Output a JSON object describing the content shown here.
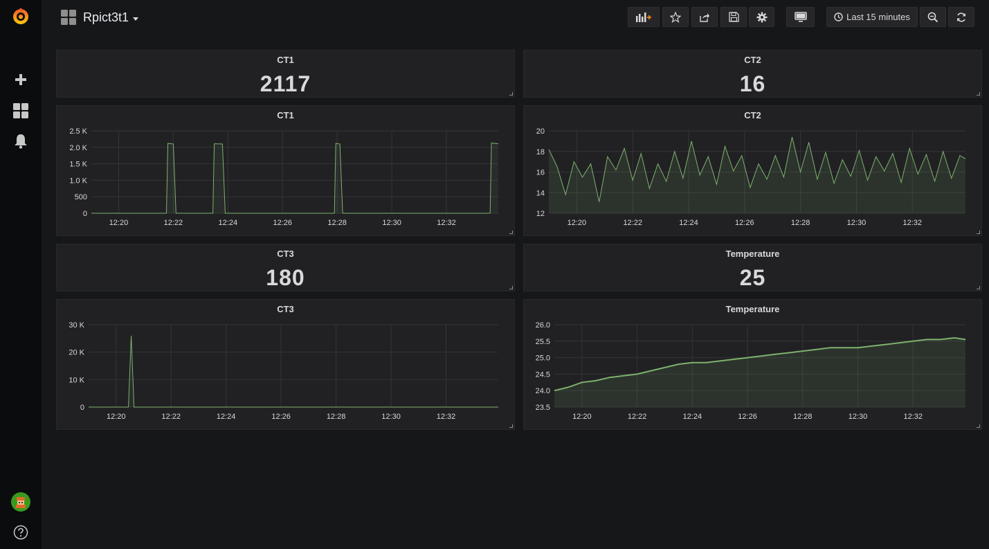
{
  "dashboard": {
    "title": "Rpict3t1"
  },
  "toolbar": {
    "add_panel": "add-panel-icon",
    "star": "star-icon",
    "share": "share-icon",
    "save": "save-icon",
    "settings": "gear-icon",
    "tv_mode": "monitor-icon",
    "time_range": "Last 15 minutes",
    "zoom": "zoom-out-icon",
    "refresh": "refresh-icon"
  },
  "sidemenu": {
    "logo": "grafana-logo-icon",
    "create": "plus-icon",
    "dashboards": "dashboards-icon",
    "alerting": "bell-icon",
    "profile": "avatar",
    "help": "help-icon"
  },
  "colors": {
    "series": "#7eb26d",
    "background": "#161719",
    "panel": "#212124"
  },
  "stats": [
    {
      "title": "CT1",
      "value": "2117"
    },
    {
      "title": "CT2",
      "value": "16"
    },
    {
      "title": "CT3",
      "value": "180"
    },
    {
      "title": "Temperature",
      "value": "25"
    }
  ],
  "chart_data": [
    {
      "type": "line",
      "title": "CT1",
      "x_ticks": [
        "12:20",
        "12:22",
        "12:24",
        "12:26",
        "12:28",
        "12:30",
        "12:32"
      ],
      "y_ticks": [
        "0",
        "500",
        "1.0 K",
        "1.5 K",
        "2.0 K",
        "2.5 K"
      ],
      "xlim": [
        19.0,
        33.9
      ],
      "ylim": [
        0,
        2500
      ],
      "x": [
        19.0,
        21.75,
        21.8,
        22.0,
        22.1,
        23.45,
        23.5,
        23.8,
        23.9,
        27.9,
        27.95,
        28.1,
        28.2,
        33.6,
        33.65,
        33.9
      ],
      "values": [
        0,
        0,
        2120,
        2100,
        0,
        0,
        2110,
        2100,
        0,
        0,
        2120,
        2100,
        0,
        0,
        2130,
        2110
      ]
    },
    {
      "type": "area",
      "title": "CT2",
      "x_ticks": [
        "12:20",
        "12:22",
        "12:24",
        "12:26",
        "12:28",
        "12:30",
        "12:32"
      ],
      "y_ticks": [
        "12",
        "14",
        "16",
        "18",
        "20"
      ],
      "xlim": [
        19.0,
        33.9
      ],
      "ylim": [
        12,
        20
      ],
      "x": [
        19.0,
        19.3,
        19.6,
        19.9,
        20.2,
        20.5,
        20.8,
        21.1,
        21.4,
        21.7,
        22.0,
        22.3,
        22.6,
        22.9,
        23.2,
        23.5,
        23.8,
        24.1,
        24.4,
        24.7,
        25.0,
        25.3,
        25.6,
        25.9,
        26.2,
        26.5,
        26.8,
        27.1,
        27.4,
        27.7,
        28.0,
        28.3,
        28.6,
        28.9,
        29.2,
        29.5,
        29.8,
        30.1,
        30.4,
        30.7,
        31.0,
        31.3,
        31.6,
        31.9,
        32.2,
        32.5,
        32.8,
        33.1,
        33.4,
        33.7,
        33.9
      ],
      "values": [
        18.2,
        16.5,
        13.8,
        17.0,
        15.5,
        16.8,
        13.1,
        17.5,
        16.2,
        18.3,
        15.2,
        17.8,
        14.4,
        16.8,
        15.1,
        18.0,
        15.4,
        19.0,
        15.7,
        17.5,
        14.8,
        18.5,
        16.1,
        17.6,
        14.5,
        16.8,
        15.3,
        17.6,
        15.5,
        19.4,
        16.0,
        18.9,
        15.3,
        17.9,
        14.9,
        17.2,
        15.6,
        18.1,
        15.2,
        17.5,
        16.1,
        17.8,
        15.0,
        18.3,
        15.8,
        17.7,
        15.1,
        18.0,
        15.4,
        17.6,
        17.3
      ]
    },
    {
      "type": "line",
      "title": "CT3",
      "x_ticks": [
        "12:20",
        "12:22",
        "12:24",
        "12:26",
        "12:28",
        "12:30",
        "12:32"
      ],
      "y_ticks": [
        "0",
        "10 K",
        "20 K",
        "30 K"
      ],
      "xlim": [
        19.0,
        33.9
      ],
      "ylim": [
        0,
        30000
      ],
      "x": [
        19.0,
        20.45,
        20.55,
        20.65,
        33.9
      ],
      "values": [
        0,
        0,
        26000,
        0,
        0
      ]
    },
    {
      "type": "area",
      "title": "Temperature",
      "x_ticks": [
        "12:20",
        "12:22",
        "12:24",
        "12:26",
        "12:28",
        "12:30",
        "12:32"
      ],
      "y_ticks": [
        "23.5",
        "24.0",
        "24.5",
        "25.0",
        "25.5",
        "26.0"
      ],
      "xlim": [
        19.0,
        33.9
      ],
      "ylim": [
        23.5,
        26.0
      ],
      "x": [
        19.0,
        19.5,
        20.0,
        20.5,
        21.0,
        21.5,
        22.0,
        22.5,
        23.0,
        23.5,
        24.0,
        24.5,
        25.0,
        25.5,
        26.0,
        26.5,
        27.0,
        27.5,
        28.0,
        28.5,
        29.0,
        29.5,
        30.0,
        30.5,
        31.0,
        31.5,
        32.0,
        32.5,
        33.0,
        33.5,
        33.9
      ],
      "values": [
        24.0,
        24.1,
        24.25,
        24.3,
        24.4,
        24.45,
        24.5,
        24.6,
        24.7,
        24.8,
        24.85,
        24.85,
        24.9,
        24.95,
        25.0,
        25.05,
        25.1,
        25.15,
        25.2,
        25.25,
        25.3,
        25.3,
        25.3,
        25.35,
        25.4,
        25.45,
        25.5,
        25.55,
        25.55,
        25.6,
        25.55
      ]
    }
  ]
}
